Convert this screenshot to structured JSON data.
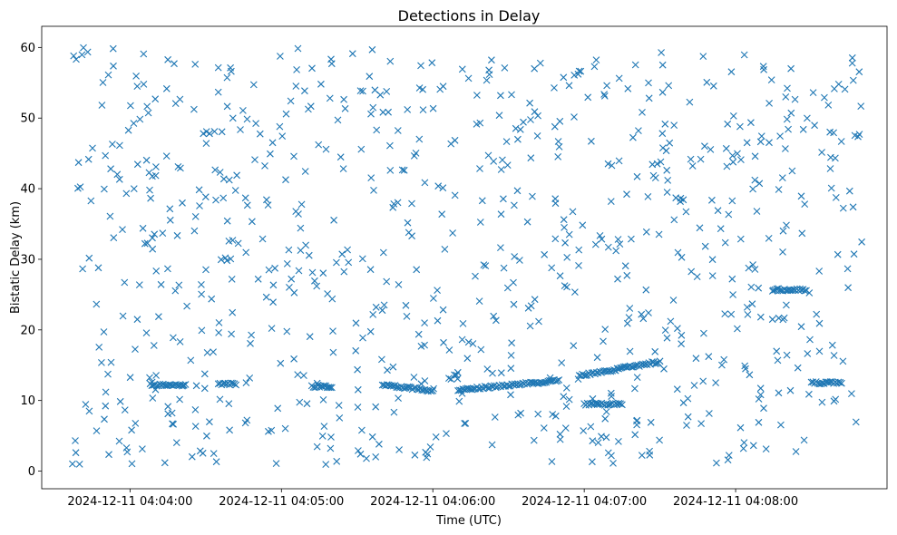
{
  "chart_data": {
    "type": "scatter",
    "title": "Detections in Delay",
    "xlabel": "Time (UTC)",
    "ylabel": "Bistatic Delay (km)",
    "marker": "x",
    "color": "#1f77b4",
    "grid": false,
    "x_time_range": [
      "2024-12-11 04:03:37",
      "2024-12-11 04:08:50"
    ],
    "xlim": [
      "2024-12-11 04:03:25",
      "2024-12-11 04:09:00"
    ],
    "ylim": [
      -2.5,
      63
    ],
    "x_ticks": [
      "2024-12-11 04:04:00",
      "2024-12-11 04:05:00",
      "2024-12-11 04:06:00",
      "2024-12-11 04:07:00",
      "2024-12-11 04:08:00"
    ],
    "y_ticks": [
      0,
      10,
      20,
      30,
      40,
      50,
      60
    ],
    "tracks": [
      {
        "start": "2024-12-11 04:04:08",
        "end": "2024-12-11 04:04:22",
        "delay_start": 12.2,
        "delay_end": 12.2
      },
      {
        "start": "2024-12-11 04:04:35",
        "end": "2024-12-11 04:04:42",
        "delay_start": 12.3,
        "delay_end": 12.3
      },
      {
        "start": "2024-12-11 04:05:12",
        "end": "2024-12-11 04:05:20",
        "delay_start": 12.0,
        "delay_end": 12.0
      },
      {
        "start": "2024-12-11 04:05:40",
        "end": "2024-12-11 04:06:00",
        "delay_start": 12.2,
        "delay_end": 11.4
      },
      {
        "start": "2024-12-11 04:06:10",
        "end": "2024-12-11 04:06:50",
        "delay_start": 11.5,
        "delay_end": 12.8
      },
      {
        "start": "2024-12-11 04:06:58",
        "end": "2024-12-11 04:07:30",
        "delay_start": 13.5,
        "delay_end": 15.5
      },
      {
        "start": "2024-12-11 04:07:00",
        "end": "2024-12-11 04:07:15",
        "delay_start": 9.5,
        "delay_end": 9.5
      },
      {
        "start": "2024-12-11 04:08:15",
        "end": "2024-12-11 04:08:28",
        "delay_start": 25.7,
        "delay_end": 25.7
      },
      {
        "start": "2024-12-11 04:08:30",
        "end": "2024-12-11 04:08:42",
        "delay_start": 12.5,
        "delay_end": 12.5
      }
    ]
  }
}
